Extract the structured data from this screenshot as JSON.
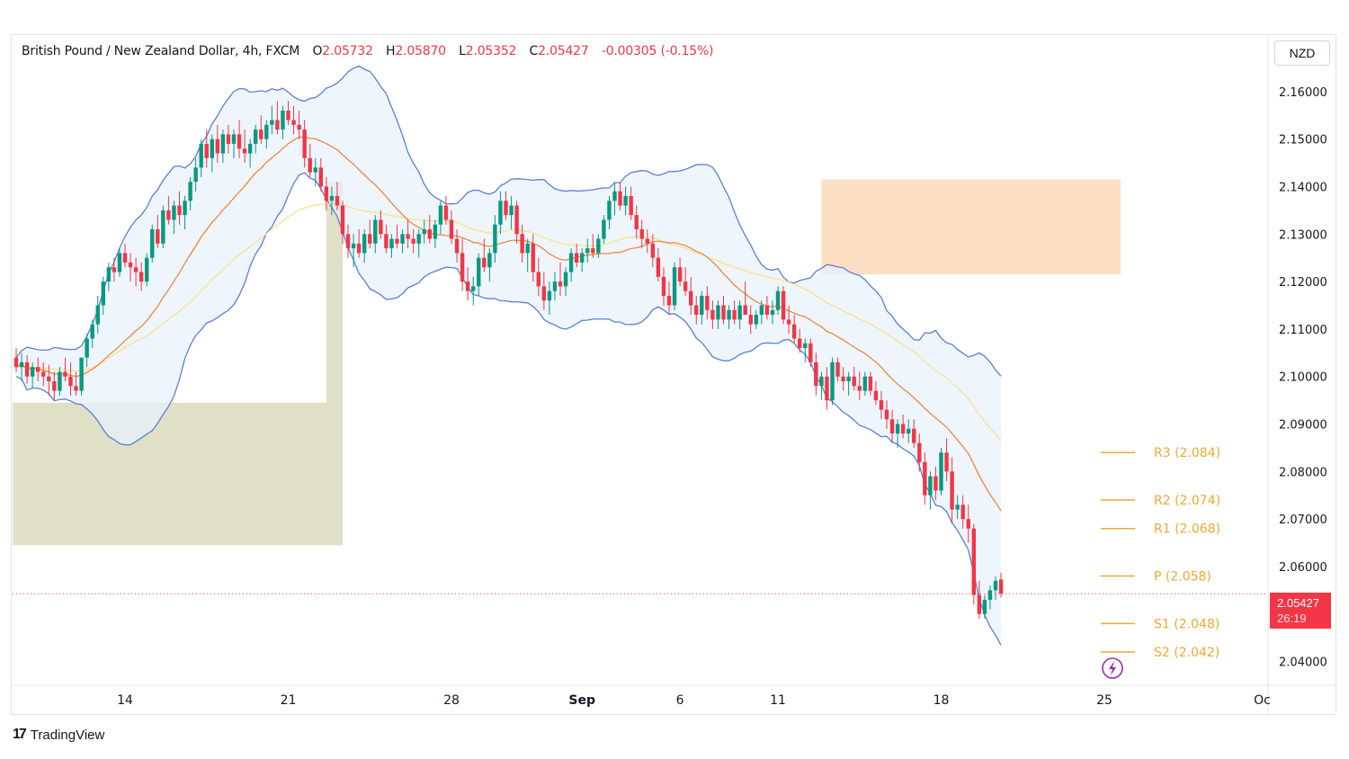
{
  "header": {
    "symbol": "British Pound / New Zealand Dollar, 4h, FXCM",
    "open_label": "O",
    "open": "2.05732",
    "high_label": "H",
    "high": "2.05870",
    "low_label": "L",
    "low": "2.05352",
    "close_label": "C",
    "close": "2.05427",
    "change": "-0.00305 (-0.15%)"
  },
  "currency_button": "NZD",
  "branding": {
    "logo": "17",
    "name": "TradingView"
  },
  "price_tag": {
    "price": "2.05427",
    "countdown": "26:19"
  },
  "colors": {
    "up": "#089981",
    "down": "#f23645",
    "band_line": "#5b7fd6",
    "band_fill": "#e8f1fc",
    "ema_orange": "#f0883e",
    "ema_yellow": "#f5e48a",
    "demand_zone": "#d8d8b8",
    "supply_zone": "#fcd9b8",
    "pivot": "#f0a830"
  },
  "chart_data": {
    "type": "candlestick",
    "ylim": [
      2.035,
      2.163
    ],
    "y_ticks": [
      "2.16000",
      "2.15000",
      "2.14000",
      "2.13000",
      "2.12000",
      "2.11000",
      "2.10000",
      "2.09000",
      "2.08000",
      "2.07000",
      "2.06000",
      "2.04000"
    ],
    "y_tick_values": [
      2.16,
      2.15,
      2.14,
      2.13,
      2.12,
      2.11,
      2.1,
      2.09,
      2.08,
      2.07,
      2.06,
      2.04
    ],
    "x_ticks": [
      {
        "label": "14",
        "bar": 20
      },
      {
        "label": "21",
        "bar": 50
      },
      {
        "label": "28",
        "bar": 80
      },
      {
        "label": "Sep",
        "bar": 104
      },
      {
        "label": "6",
        "bar": 122
      },
      {
        "label": "11",
        "bar": 140
      },
      {
        "label": "18",
        "bar": 170
      },
      {
        "label": "25",
        "bar": 200
      },
      {
        "label": "Oc",
        "bar": 229
      }
    ],
    "bars": [
      [
        2.104,
        2.106,
        2.101,
        2.102
      ],
      [
        2.102,
        2.105,
        2.099,
        2.103
      ],
      [
        2.103,
        2.1045,
        2.0985,
        2.1
      ],
      [
        2.1,
        2.103,
        2.0975,
        2.102
      ],
      [
        2.102,
        2.104,
        2.099,
        2.101
      ],
      [
        2.101,
        2.103,
        2.098,
        2.1
      ],
      [
        2.1,
        2.1025,
        2.096,
        2.099
      ],
      [
        2.099,
        2.101,
        2.095,
        2.097
      ],
      [
        2.097,
        2.102,
        2.096,
        2.101
      ],
      [
        2.101,
        2.104,
        2.099,
        2.1
      ],
      [
        2.1,
        2.103,
        2.096,
        2.098
      ],
      [
        2.098,
        2.101,
        2.096,
        2.097
      ],
      [
        2.097,
        2.104,
        2.096,
        2.104
      ],
      [
        2.104,
        2.109,
        2.102,
        2.108
      ],
      [
        2.108,
        2.112,
        2.106,
        2.111
      ],
      [
        2.111,
        2.117,
        2.109,
        2.115
      ],
      [
        2.115,
        2.121,
        2.113,
        2.12
      ],
      [
        2.12,
        2.124,
        2.118,
        2.123
      ],
      [
        2.123,
        2.125,
        2.12,
        2.122
      ],
      [
        2.122,
        2.127,
        2.121,
        2.126
      ],
      [
        2.126,
        2.128,
        2.123,
        2.124
      ],
      [
        2.124,
        2.126,
        2.12,
        2.123
      ],
      [
        2.123,
        2.125,
        2.119,
        2.122
      ],
      [
        2.122,
        2.124,
        2.118,
        2.12
      ],
      [
        2.12,
        2.126,
        2.119,
        2.125
      ],
      [
        2.125,
        2.132,
        2.124,
        2.131
      ],
      [
        2.131,
        2.134,
        2.127,
        2.128
      ],
      [
        2.128,
        2.136,
        2.127,
        2.135
      ],
      [
        2.135,
        2.138,
        2.132,
        2.133
      ],
      [
        2.133,
        2.137,
        2.13,
        2.136
      ],
      [
        2.136,
        2.139,
        2.132,
        2.134
      ],
      [
        2.134,
        2.138,
        2.131,
        2.137
      ],
      [
        2.137,
        2.142,
        2.135,
        2.141
      ],
      [
        2.141,
        2.146,
        2.139,
        2.144
      ],
      [
        2.144,
        2.15,
        2.142,
        2.149
      ],
      [
        2.149,
        2.152,
        2.144,
        2.146
      ],
      [
        2.146,
        2.151,
        2.143,
        2.15
      ],
      [
        2.15,
        2.153,
        2.145,
        2.147
      ],
      [
        2.147,
        2.152,
        2.145,
        2.151
      ],
      [
        2.151,
        2.153,
        2.147,
        2.149
      ],
      [
        2.149,
        2.152,
        2.146,
        2.151
      ],
      [
        2.151,
        2.154,
        2.146,
        2.148
      ],
      [
        2.148,
        2.152,
        2.145,
        2.147
      ],
      [
        2.147,
        2.15,
        2.144,
        2.149
      ],
      [
        2.149,
        2.153,
        2.147,
        2.152
      ],
      [
        2.152,
        2.155,
        2.149,
        2.15
      ],
      [
        2.15,
        2.154,
        2.148,
        2.153
      ],
      [
        2.153,
        2.157,
        2.151,
        2.154
      ],
      [
        2.154,
        2.158,
        2.151,
        2.152
      ],
      [
        2.152,
        2.157,
        2.15,
        2.156
      ],
      [
        2.156,
        2.158,
        2.153,
        2.154
      ],
      [
        2.154,
        2.157,
        2.151,
        2.153
      ],
      [
        2.153,
        2.156,
        2.15,
        2.152
      ],
      [
        2.152,
        2.154,
        2.144,
        2.146
      ],
      [
        2.146,
        2.149,
        2.142,
        2.143
      ],
      [
        2.143,
        2.146,
        2.14,
        2.144
      ],
      [
        2.144,
        2.146,
        2.139,
        2.14
      ],
      [
        2.14,
        2.142,
        2.135,
        2.137
      ],
      [
        2.137,
        2.14,
        2.134,
        2.138
      ],
      [
        2.138,
        2.141,
        2.135,
        2.136
      ],
      [
        2.136,
        2.137,
        2.128,
        2.13
      ],
      [
        2.13,
        2.132,
        2.125,
        2.127
      ],
      [
        2.127,
        2.13,
        2.123,
        2.128
      ],
      [
        2.128,
        2.131,
        2.125,
        2.126
      ],
      [
        2.126,
        2.131,
        2.124,
        2.13
      ],
      [
        2.13,
        2.133,
        2.127,
        2.128
      ],
      [
        2.128,
        2.134,
        2.126,
        2.133
      ],
      [
        2.133,
        2.135,
        2.129,
        2.13
      ],
      [
        2.13,
        2.132,
        2.126,
        2.127
      ],
      [
        2.127,
        2.13,
        2.125,
        2.129
      ],
      [
        2.129,
        2.132,
        2.127,
        2.128
      ],
      [
        2.128,
        2.131,
        2.126,
        2.13
      ],
      [
        2.13,
        2.133,
        2.127,
        2.129
      ],
      [
        2.129,
        2.131,
        2.126,
        2.128
      ],
      [
        2.128,
        2.131,
        2.125,
        2.13
      ],
      [
        2.13,
        2.133,
        2.128,
        2.131
      ],
      [
        2.131,
        2.134,
        2.128,
        2.129
      ],
      [
        2.129,
        2.133,
        2.127,
        2.132
      ],
      [
        2.132,
        2.137,
        2.13,
        2.136
      ],
      [
        2.136,
        2.138,
        2.132,
        2.133
      ],
      [
        2.133,
        2.135,
        2.128,
        2.129
      ],
      [
        2.129,
        2.131,
        2.124,
        2.126
      ],
      [
        2.126,
        2.129,
        2.118,
        2.12
      ],
      [
        2.12,
        2.123,
        2.116,
        2.118
      ],
      [
        2.118,
        2.121,
        2.115,
        2.119
      ],
      [
        2.119,
        2.126,
        2.117,
        2.125
      ],
      [
        2.125,
        2.129,
        2.122,
        2.123
      ],
      [
        2.123,
        2.127,
        2.12,
        2.126
      ],
      [
        2.126,
        2.134,
        2.124,
        2.132
      ],
      [
        2.132,
        2.139,
        2.13,
        2.137
      ],
      [
        2.137,
        2.139,
        2.133,
        2.134
      ],
      [
        2.134,
        2.138,
        2.131,
        2.136
      ],
      [
        2.136,
        2.137,
        2.128,
        2.13
      ],
      [
        2.13,
        2.132,
        2.124,
        2.126
      ],
      [
        2.126,
        2.129,
        2.122,
        2.128
      ],
      [
        2.128,
        2.13,
        2.12,
        2.122
      ],
      [
        2.122,
        2.125,
        2.117,
        2.119
      ],
      [
        2.119,
        2.122,
        2.114,
        2.116
      ],
      [
        2.116,
        2.12,
        2.113,
        2.118
      ],
      [
        2.118,
        2.122,
        2.116,
        2.12
      ],
      [
        2.12,
        2.124,
        2.117,
        2.119
      ],
      [
        2.119,
        2.123,
        2.117,
        2.122
      ],
      [
        2.122,
        2.127,
        2.12,
        2.126
      ],
      [
        2.126,
        2.128,
        2.123,
        2.124
      ],
      [
        2.124,
        2.127,
        2.122,
        2.126
      ],
      [
        2.126,
        2.129,
        2.124,
        2.127
      ],
      [
        2.127,
        2.13,
        2.125,
        2.126
      ],
      [
        2.126,
        2.13,
        2.125,
        2.129
      ],
      [
        2.129,
        2.134,
        2.128,
        2.133
      ],
      [
        2.133,
        2.138,
        2.131,
        2.137
      ],
      [
        2.137,
        2.141,
        2.134,
        2.139
      ],
      [
        2.139,
        2.141,
        2.135,
        2.136
      ],
      [
        2.136,
        2.14,
        2.134,
        2.138
      ],
      [
        2.138,
        2.14,
        2.133,
        2.134
      ],
      [
        2.134,
        2.136,
        2.129,
        2.131
      ],
      [
        2.131,
        2.133,
        2.127,
        2.129
      ],
      [
        2.129,
        2.131,
        2.126,
        2.128
      ],
      [
        2.128,
        2.13,
        2.123,
        2.125
      ],
      [
        2.125,
        2.127,
        2.12,
        2.121
      ],
      [
        2.121,
        2.123,
        2.115,
        2.117
      ],
      [
        2.117,
        2.12,
        2.113,
        2.115
      ],
      [
        2.115,
        2.124,
        2.114,
        2.123
      ],
      [
        2.123,
        2.125,
        2.119,
        2.12
      ],
      [
        2.12,
        2.123,
        2.117,
        2.118
      ],
      [
        2.118,
        2.121,
        2.113,
        2.115
      ],
      [
        2.115,
        2.117,
        2.111,
        2.113
      ],
      [
        2.113,
        2.118,
        2.111,
        2.117
      ],
      [
        2.117,
        2.119,
        2.112,
        2.114
      ],
      [
        2.114,
        2.116,
        2.11,
        2.112
      ],
      [
        2.112,
        2.116,
        2.11,
        2.115
      ],
      [
        2.115,
        2.117,
        2.111,
        2.112
      ],
      [
        2.112,
        2.115,
        2.11,
        2.114
      ],
      [
        2.114,
        2.116,
        2.111,
        2.112
      ],
      [
        2.112,
        2.116,
        2.11,
        2.115
      ],
      [
        2.115,
        2.12,
        2.113,
        2.113
      ],
      [
        2.113,
        2.115,
        2.109,
        2.111
      ],
      [
        2.111,
        2.114,
        2.11,
        2.113
      ],
      [
        2.113,
        2.116,
        2.111,
        2.115
      ],
      [
        2.115,
        2.117,
        2.112,
        2.113
      ],
      [
        2.113,
        2.116,
        2.111,
        2.114
      ],
      [
        2.114,
        2.119,
        2.113,
        2.118
      ],
      [
        2.118,
        2.119,
        2.111,
        2.112
      ],
      [
        2.112,
        2.115,
        2.109,
        2.111
      ],
      [
        2.111,
        2.113,
        2.107,
        2.108
      ],
      [
        2.108,
        2.11,
        2.105,
        2.106
      ],
      [
        2.106,
        2.108,
        2.103,
        2.107
      ],
      [
        2.107,
        2.108,
        2.102,
        2.103
      ],
      [
        2.103,
        2.105,
        2.096,
        2.098
      ],
      [
        2.098,
        2.101,
        2.095,
        2.1
      ],
      [
        2.1,
        2.102,
        2.093,
        2.095
      ],
      [
        2.095,
        2.104,
        2.094,
        2.103
      ],
      [
        2.103,
        2.104,
        2.099,
        2.1
      ],
      [
        2.1,
        2.102,
        2.097,
        2.099
      ],
      [
        2.099,
        2.101,
        2.096,
        2.1
      ],
      [
        2.1,
        2.102,
        2.097,
        2.098
      ],
      [
        2.098,
        2.101,
        2.095,
        2.097
      ],
      [
        2.097,
        2.101,
        2.096,
        2.1
      ],
      [
        2.1,
        2.101,
        2.096,
        2.097
      ],
      [
        2.097,
        2.099,
        2.094,
        2.095
      ],
      [
        2.095,
        2.097,
        2.091,
        2.093
      ],
      [
        2.093,
        2.095,
        2.089,
        2.091
      ],
      [
        2.091,
        2.093,
        2.086,
        2.088
      ],
      [
        2.088,
        2.091,
        2.085,
        2.09
      ],
      [
        2.09,
        2.092,
        2.087,
        2.088
      ],
      [
        2.088,
        2.091,
        2.086,
        2.089
      ],
      [
        2.089,
        2.091,
        2.085,
        2.086
      ],
      [
        2.086,
        2.088,
        2.08,
        2.082
      ],
      [
        2.082,
        2.084,
        2.073,
        2.075
      ],
      [
        2.075,
        2.08,
        2.072,
        2.079
      ],
      [
        2.079,
        2.081,
        2.074,
        2.076
      ],
      [
        2.076,
        2.085,
        2.075,
        2.084
      ],
      [
        2.084,
        2.087,
        2.078,
        2.08
      ],
      [
        2.08,
        2.083,
        2.069,
        2.072
      ],
      [
        2.072,
        2.075,
        2.07,
        2.073
      ],
      [
        2.073,
        2.075,
        2.068,
        2.07
      ],
      [
        2.07,
        2.073,
        2.065,
        2.068
      ],
      [
        2.068,
        2.069,
        2.052,
        2.054
      ],
      [
        2.054,
        2.057,
        2.049,
        2.05
      ],
      [
        2.05,
        2.054,
        2.049,
        2.053
      ],
      [
        2.053,
        2.056,
        2.051,
        2.055
      ],
      [
        2.055,
        2.058,
        2.053,
        2.057
      ],
      [
        2.0573,
        2.0587,
        2.0535,
        2.0543
      ]
    ],
    "pivot_levels": [
      {
        "label": "R3 (2.084)",
        "value": 2.084
      },
      {
        "label": "R2 (2.074)",
        "value": 2.074
      },
      {
        "label": "R1 (2.068)",
        "value": 2.068
      },
      {
        "label": "P (2.058)",
        "value": 2.058
      },
      {
        "label": "S1 (2.048)",
        "value": 2.048
      },
      {
        "label": "S2 (2.042)",
        "value": 2.042
      }
    ],
    "current_price": 2.05427,
    "zones": [
      {
        "kind": "demand",
        "bar_from": -1,
        "bar_to": 60,
        "y_from": 2.0645,
        "y_to": 2.0945
      },
      {
        "kind": "demand",
        "bar_from": 57,
        "bar_to": 60,
        "y_from": 2.0945,
        "y_to": 2.141
      },
      {
        "kind": "supply",
        "bar_from": 148,
        "bar_to": 203,
        "y_from": 2.1215,
        "y_to": 2.1415
      }
    ]
  }
}
